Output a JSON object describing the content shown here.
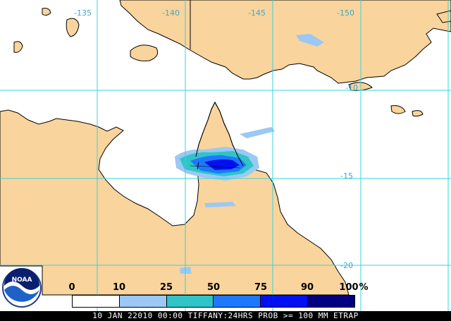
{
  "map": {
    "colors": {
      "land": "#f9d49c",
      "ocean": "#ffffff",
      "grid": "#35d3e0",
      "coast": "#000000"
    },
    "longitude_labels": [
      "-135",
      "-140",
      "-145",
      "-150"
    ],
    "latitude_labels": [
      "-10",
      "-15",
      "-20"
    ]
  },
  "legend": {
    "ticks": [
      "0",
      "10",
      "25",
      "50",
      "75",
      "90",
      "100"
    ],
    "unit": "%",
    "colors": [
      "#ffffff",
      "#9bc8f4",
      "#2fc4c8",
      "#1e78ff",
      "#0010f0",
      "#000080"
    ]
  },
  "caption": "10 JAN 22010 00:00 TIFFANY:24HRS PROB >= 100 MM ETRAP",
  "logo": {
    "text": "NOAA",
    "icon": "noaa-logo-icon"
  }
}
